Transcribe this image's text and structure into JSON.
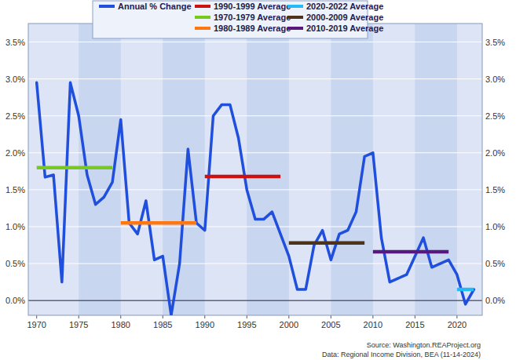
{
  "chart_data": {
    "type": "line",
    "source": "Source: Washington.REAProject.org",
    "data_source": "Data: Regional Income Division, BEA (11-14-2024)",
    "x": [
      1970,
      1971,
      1972,
      1973,
      1974,
      1975,
      1976,
      1977,
      1978,
      1979,
      1980,
      1981,
      1982,
      1983,
      1984,
      1985,
      1986,
      1987,
      1988,
      1989,
      1990,
      1991,
      1992,
      1993,
      1994,
      1995,
      1996,
      1997,
      1998,
      1999,
      2000,
      2001,
      2002,
      2003,
      2004,
      2005,
      2006,
      2007,
      2008,
      2009,
      2010,
      2011,
      2012,
      2013,
      2014,
      2015,
      2016,
      2017,
      2018,
      2019,
      2020,
      2021,
      2022
    ],
    "series": [
      {
        "name": "Annual % Change",
        "color": "#1f4fdc",
        "line_style": "solid",
        "values": [
          2.95,
          1.67,
          1.7,
          0.25,
          2.95,
          2.5,
          1.7,
          1.3,
          1.4,
          1.6,
          2.45,
          1.05,
          0.9,
          1.35,
          0.55,
          0.6,
          -0.2,
          0.5,
          2.05,
          1.05,
          0.95,
          2.5,
          2.65,
          2.65,
          2.2,
          1.5,
          1.1,
          1.1,
          1.2,
          0.9,
          0.6,
          0.15,
          0.15,
          0.75,
          0.95,
          0.55,
          0.9,
          0.95,
          1.2,
          1.95,
          2.0,
          0.85,
          0.25,
          0.3,
          0.35,
          0.6,
          0.85,
          0.45,
          0.5,
          0.55,
          0.35,
          -0.05,
          0.15
        ]
      },
      {
        "name": "1990-1999 Average",
        "color": "#cc1111",
        "line_style": "solid",
        "values": [
          null,
          null,
          null,
          null,
          null,
          null,
          null,
          null,
          null,
          null,
          null,
          null,
          null,
          null,
          null,
          null,
          null,
          null,
          null,
          null,
          1.68,
          1.68,
          1.68,
          1.68,
          1.68,
          1.68,
          1.68,
          1.68,
          1.68,
          1.68,
          null,
          null,
          null,
          null,
          null,
          null,
          null,
          null,
          null,
          null,
          null,
          null,
          null,
          null,
          null,
          null,
          null,
          null,
          null,
          null,
          null,
          null,
          null
        ]
      },
      {
        "name": "2020-2022 Average",
        "color": "#22bbf5",
        "line_style": "solid",
        "values": [
          null,
          null,
          null,
          null,
          null,
          null,
          null,
          null,
          null,
          null,
          null,
          null,
          null,
          null,
          null,
          null,
          null,
          null,
          null,
          null,
          null,
          null,
          null,
          null,
          null,
          null,
          null,
          null,
          null,
          null,
          null,
          null,
          null,
          null,
          null,
          null,
          null,
          null,
          null,
          null,
          null,
          null,
          null,
          null,
          null,
          null,
          null,
          null,
          null,
          null,
          0.15,
          0.15,
          0.15
        ]
      },
      {
        "name": "1970-1979 Average",
        "color": "#77c922",
        "line_style": "solid",
        "values": [
          1.8,
          1.8,
          1.8,
          1.8,
          1.8,
          1.8,
          1.8,
          1.8,
          1.8,
          1.8,
          null,
          null,
          null,
          null,
          null,
          null,
          null,
          null,
          null,
          null,
          null,
          null,
          null,
          null,
          null,
          null,
          null,
          null,
          null,
          null,
          null,
          null,
          null,
          null,
          null,
          null,
          null,
          null,
          null,
          null,
          null,
          null,
          null,
          null,
          null,
          null,
          null,
          null,
          null,
          null,
          null,
          null,
          null
        ]
      },
      {
        "name": "2000-2009 Average",
        "color": "#4d3319",
        "line_style": "solid",
        "values": [
          null,
          null,
          null,
          null,
          null,
          null,
          null,
          null,
          null,
          null,
          null,
          null,
          null,
          null,
          null,
          null,
          null,
          null,
          null,
          null,
          null,
          null,
          null,
          null,
          null,
          null,
          null,
          null,
          null,
          null,
          0.78,
          0.78,
          0.78,
          0.78,
          0.78,
          0.78,
          0.78,
          0.78,
          0.78,
          0.78,
          null,
          null,
          null,
          null,
          null,
          null,
          null,
          null,
          null,
          null,
          null,
          null,
          null
        ]
      },
      {
        "name": "1980-1989 Average",
        "color": "#ff7711",
        "line_style": "solid",
        "values": [
          null,
          null,
          null,
          null,
          null,
          null,
          null,
          null,
          null,
          null,
          1.05,
          1.05,
          1.05,
          1.05,
          1.05,
          1.05,
          1.05,
          1.05,
          1.05,
          1.05,
          null,
          null,
          null,
          null,
          null,
          null,
          null,
          null,
          null,
          null,
          null,
          null,
          null,
          null,
          null,
          null,
          null,
          null,
          null,
          null,
          null,
          null,
          null,
          null,
          null,
          null,
          null,
          null,
          null,
          null,
          null,
          null,
          null
        ]
      },
      {
        "name": "2010-2019 Average",
        "color": "#55197f",
        "line_style": "solid",
        "values": [
          null,
          null,
          null,
          null,
          null,
          null,
          null,
          null,
          null,
          null,
          null,
          null,
          null,
          null,
          null,
          null,
          null,
          null,
          null,
          null,
          null,
          null,
          null,
          null,
          null,
          null,
          null,
          null,
          null,
          null,
          null,
          null,
          null,
          null,
          null,
          null,
          null,
          null,
          null,
          null,
          0.66,
          0.66,
          0.66,
          0.66,
          0.66,
          0.66,
          0.66,
          0.66,
          0.66,
          0.66,
          null,
          null,
          null
        ]
      }
    ],
    "xlim": [
      1969,
      2023
    ],
    "xticks": [
      1970,
      1975,
      1980,
      1985,
      1990,
      1995,
      2000,
      2005,
      2010,
      2015,
      2020
    ],
    "ylim": [
      -0.2,
      3.75
    ],
    "yticks": [
      {
        "value": 0,
        "label": "0.0%"
      },
      {
        "value": 0.5,
        "label": "0.5%"
      },
      {
        "value": 1,
        "label": "1.0%"
      },
      {
        "value": 1.5,
        "label": "1.5%"
      },
      {
        "value": 2,
        "label": "2.0%"
      },
      {
        "value": 2.5,
        "label": "2.5%"
      },
      {
        "value": 3,
        "label": "3.0%"
      },
      {
        "value": 3.5,
        "label": "3.5%"
      }
    ],
    "grid": true,
    "legend": "top"
  }
}
